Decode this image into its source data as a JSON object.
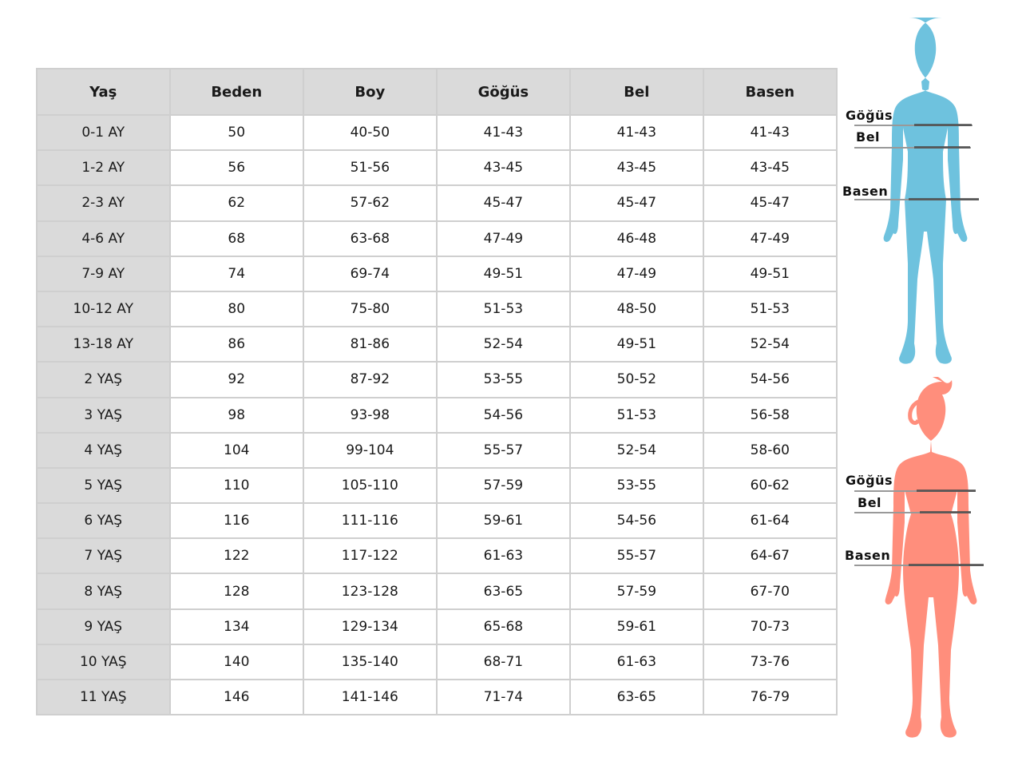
{
  "table": {
    "headers": [
      "Yaş",
      "Beden",
      "Boy",
      "Göğüs",
      "Bel",
      "Basen"
    ],
    "rows": [
      [
        "0-1 AY",
        "50",
        "40-50",
        "41-43",
        "41-43",
        "41-43"
      ],
      [
        "1-2 AY",
        "56",
        "51-56",
        "43-45",
        "43-45",
        "43-45"
      ],
      [
        "2-3 AY",
        "62",
        "57-62",
        "45-47",
        "45-47",
        "45-47"
      ],
      [
        "4-6 AY",
        "68",
        "63-68",
        "47-49",
        "46-48",
        "47-49"
      ],
      [
        "7-9 AY",
        "74",
        "69-74",
        "49-51",
        "47-49",
        "49-51"
      ],
      [
        "10-12 AY",
        "80",
        "75-80",
        "51-53",
        "48-50",
        "51-53"
      ],
      [
        "13-18 AY",
        "86",
        "81-86",
        "52-54",
        "49-51",
        "52-54"
      ],
      [
        "2 YAŞ",
        "92",
        "87-92",
        "53-55",
        "50-52",
        "54-56"
      ],
      [
        "3 YAŞ",
        "98",
        "93-98",
        "54-56",
        "51-53",
        "56-58"
      ],
      [
        "4 YAŞ",
        "104",
        "99-104",
        "55-57",
        "52-54",
        "58-60"
      ],
      [
        "5 YAŞ",
        "110",
        "105-110",
        "57-59",
        "53-55",
        "60-62"
      ],
      [
        "6 YAŞ",
        "116",
        "111-116",
        "59-61",
        "54-56",
        "61-64"
      ],
      [
        "7 YAŞ",
        "122",
        "117-122",
        "61-63",
        "55-57",
        "64-67"
      ],
      [
        "8 YAŞ",
        "128",
        "123-128",
        "63-65",
        "57-59",
        "67-70"
      ],
      [
        "9 YAŞ",
        "134",
        "129-134",
        "65-68",
        "59-61",
        "70-73"
      ],
      [
        "10 YAŞ",
        "140",
        "135-140",
        "68-71",
        "61-63",
        "73-76"
      ],
      [
        "11 YAŞ",
        "146",
        "141-146",
        "71-74",
        "63-65",
        "76-79"
      ]
    ]
  },
  "figures": {
    "boy": {
      "color": "#6ec2de",
      "labels": {
        "chest": "Göğüs",
        "waist": "Bel",
        "hip": "Basen"
      }
    },
    "girl": {
      "color": "#ff8e7c",
      "labels": {
        "chest": "Göğüs",
        "waist": "Bel",
        "hip": "Basen"
      }
    }
  }
}
